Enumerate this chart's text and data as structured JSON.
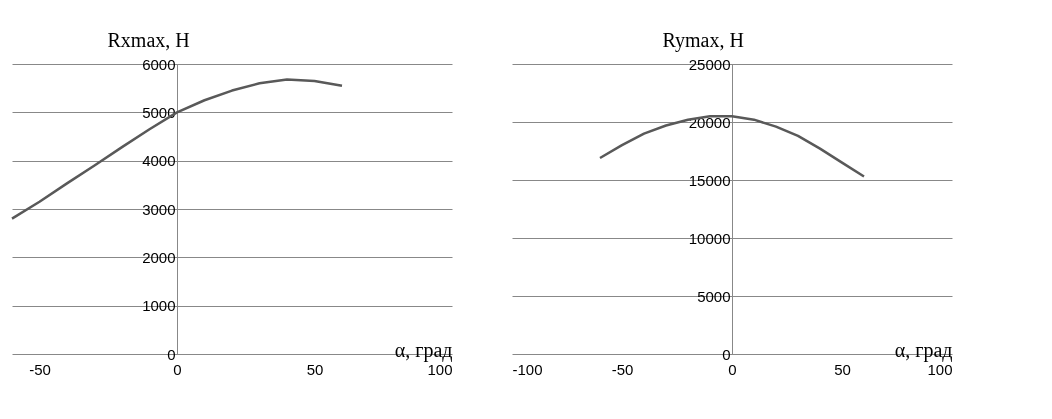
{
  "chart_data": [
    {
      "type": "line",
      "ylabel": "Rxmax, Н",
      "xlabel": "α, град",
      "grid": "y",
      "line_style": "solid",
      "marker": "none",
      "x": [
        -60,
        -50,
        -40,
        -30,
        -20,
        -10,
        0,
        10,
        20,
        30,
        40,
        50,
        60
      ],
      "series": [
        {
          "color": "#595959",
          "values": [
            2800,
            3150,
            3530,
            3900,
            4280,
            4650,
            5000,
            5250,
            5450,
            5600,
            5680,
            5650,
            5550
          ]
        }
      ],
      "xlim": [
        -60,
        100
      ],
      "xticks": [
        -50,
        0,
        50,
        100
      ],
      "ylim": [
        0,
        6000
      ],
      "yticks": [
        0,
        1000,
        2000,
        3000,
        4000,
        5000,
        6000
      ]
    },
    {
      "type": "line",
      "ylabel": "Rymax, Н",
      "xlabel": "α, град",
      "grid": "y",
      "line_style": "solid",
      "marker": "none",
      "x": [
        -60,
        -50,
        -40,
        -30,
        -20,
        -10,
        0,
        10,
        20,
        30,
        40,
        50,
        60
      ],
      "series": [
        {
          "color": "#595959",
          "values": [
            16900,
            18000,
            19000,
            19700,
            20200,
            20500,
            20500,
            20200,
            19600,
            18800,
            17700,
            16500,
            15300
          ]
        }
      ],
      "xlim": [
        -100,
        100
      ],
      "xticks": [
        -100,
        -50,
        0,
        50,
        100
      ],
      "ylim": [
        0,
        25000
      ],
      "yticks": [
        0,
        5000,
        10000,
        15000,
        20000,
        25000
      ]
    }
  ]
}
